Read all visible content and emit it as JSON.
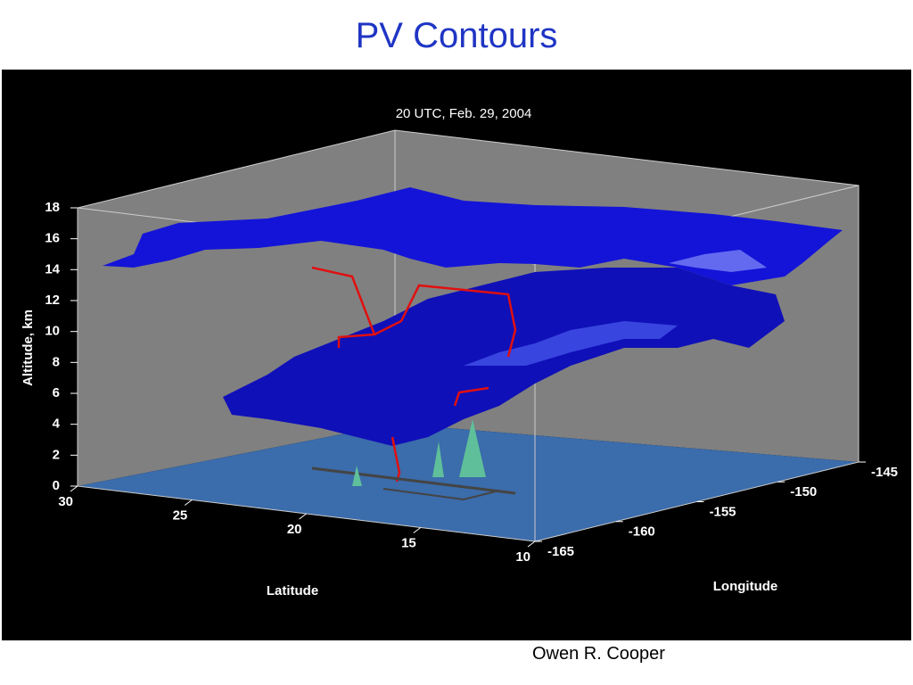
{
  "header": {
    "title": "PV Contours"
  },
  "figure": {
    "title": "20 UTC, Feb. 29, 2004",
    "y_axis": {
      "label": "Altitude, km",
      "ticks": [
        "0",
        "2",
        "4",
        "6",
        "8",
        "10",
        "12",
        "14",
        "16",
        "18"
      ]
    },
    "x_axis": {
      "label": "Latitude",
      "ticks": [
        "30",
        "25",
        "20",
        "15",
        "10"
      ]
    },
    "z_axis": {
      "label": "Longitude",
      "ticks": [
        "-165",
        "-160",
        "-155",
        "-150",
        "-145"
      ]
    }
  },
  "footer": {
    "author": "Owen R. Cooper"
  }
}
